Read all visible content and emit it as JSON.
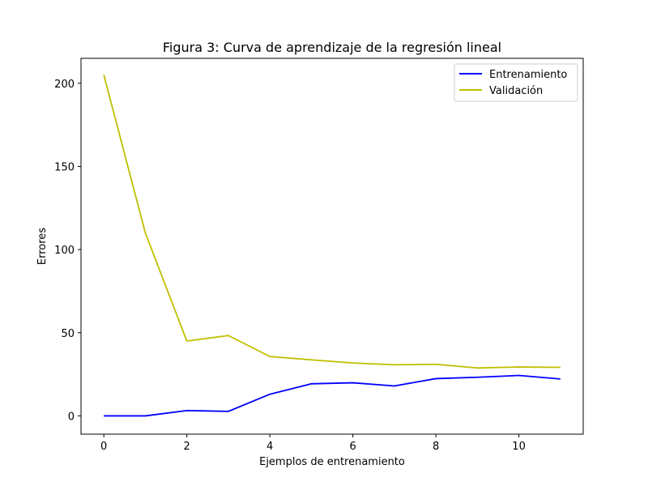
{
  "chart_data": {
    "type": "line",
    "title": "Figura 3: Curva de aprendizaje de la regresión lineal",
    "xlabel": "Ejemplos de entrenamiento",
    "ylabel": "Errores",
    "xlim": [
      -0.55,
      11.55
    ],
    "ylim": [
      -11,
      215
    ],
    "xticks": [
      0,
      2,
      4,
      6,
      8,
      10
    ],
    "yticks": [
      0,
      50,
      100,
      150,
      200
    ],
    "x": [
      0,
      1,
      2,
      3,
      4,
      5,
      6,
      7,
      8,
      9,
      10,
      11
    ],
    "grid": false,
    "legend_position": "top-right",
    "series": [
      {
        "name": "Entrenamiento",
        "color": "#0000ff",
        "values": [
          0.0,
          0.0,
          3.2,
          2.7,
          13.0,
          19.3,
          19.9,
          18.0,
          22.4,
          23.2,
          24.3,
          22.2
        ]
      },
      {
        "name": "Validación",
        "color": "#bfbf00",
        "values": [
          205.0,
          110.0,
          45.0,
          48.3,
          35.7,
          33.7,
          31.8,
          30.7,
          31.0,
          28.8,
          29.4,
          29.2
        ]
      }
    ]
  }
}
